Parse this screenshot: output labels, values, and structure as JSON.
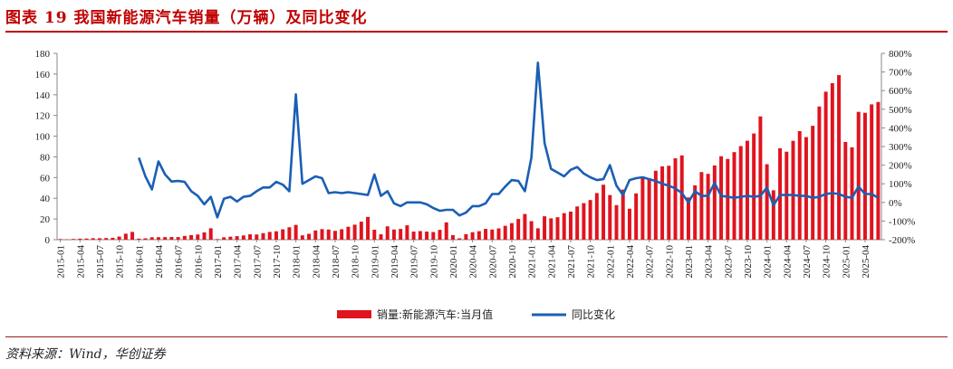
{
  "title": "图表 19   我国新能源汽车销量（万辆）及同比变化",
  "source": "资料来源：Wind，华创证券",
  "colors": {
    "bar": "#e0141e",
    "line": "#1a5fb4",
    "title": "#c00000",
    "axis": "#888888"
  },
  "chart_data": {
    "type": "bar+line",
    "left_axis": {
      "min": 0,
      "max": 180,
      "step": 20,
      "ticks": [
        "0",
        "20",
        "40",
        "60",
        "80",
        "100",
        "120",
        "140",
        "160",
        "180"
      ]
    },
    "right_axis": {
      "min": -200,
      "max": 800,
      "step": 100,
      "ticks": [
        "-200%",
        "-100%",
        "0%",
        "100%",
        "200%",
        "300%",
        "400%",
        "500%",
        "600%",
        "700%",
        "800%"
      ]
    },
    "x_tick_labels": [
      "2015-01",
      "2015-04",
      "2015-07",
      "2015-10",
      "2016-01",
      "2016-04",
      "2016-07",
      "2016-10",
      "2017-01",
      "2017-04",
      "2017-07",
      "2017-10",
      "2018-01",
      "2018-04",
      "2018-07",
      "2018-10",
      "2019-01",
      "2019-04",
      "2019-07",
      "2019-10",
      "2020-01",
      "2020-04",
      "2020-07",
      "2020-10",
      "2021-01",
      "2021-04",
      "2021-07",
      "2021-10",
      "2022-01",
      "2022-04",
      "2022-07",
      "2022-10",
      "2023-01",
      "2023-04",
      "2023-07",
      "2023-10",
      "2024-01",
      "2024-04",
      "2024-07",
      "2024-10",
      "2025-01",
      "2025-04"
    ],
    "legend": [
      "销量:新能源汽车:当月值",
      "同比变化"
    ],
    "legend_position": "bottom",
    "start_month": "2015-01",
    "series": [
      {
        "name": "销量:新能源汽车:当月值",
        "type": "bar",
        "axis": "left",
        "values": [
          0.6,
          0.3,
          0.7,
          1.0,
          1.1,
          1.4,
          1.4,
          1.6,
          1.8,
          3.0,
          5.8,
          7.5,
          1.0,
          1.3,
          2.3,
          2.4,
          2.5,
          2.6,
          2.5,
          3.6,
          4.4,
          5.0,
          7.0,
          11.0,
          0.6,
          2.3,
          2.9,
          3.4,
          4.1,
          5.2,
          5.0,
          6.3,
          7.5,
          8.1,
          10.0,
          12.0,
          14.3,
          4.2,
          5.7,
          8.9,
          10.2,
          9.8,
          8.5,
          10.1,
          12.5,
          14.5,
          17.4,
          22.0,
          9.6,
          5.2,
          12.9,
          9.8,
          10.4,
          13.9,
          7.8,
          8.3,
          7.8,
          7.4,
          9.5,
          16.7,
          4.4,
          1.3,
          5.3,
          7.2,
          8.2,
          10.4,
          9.8,
          10.9,
          13.4,
          16.0,
          20.0,
          24.8,
          17.9,
          11.0,
          22.6,
          20.6,
          21.7,
          25.6,
          27.1,
          32.1,
          35.3,
          38.3,
          45.0,
          53.1,
          43.1,
          33.4,
          48.4,
          29.9,
          44.7,
          59.6,
          59.3,
          66.6,
          70.8,
          71.4,
          78.6,
          81.4,
          40.8,
          52.5,
          65.3,
          63.6,
          71.7,
          80.6,
          78.0,
          84.6,
          90.4,
          95.6,
          102.6,
          119.1,
          72.9,
          47.7,
          88.3,
          85.0,
          95.5,
          104.9,
          99.1,
          110.0,
          128.7,
          143.0,
          151.2,
          159.0,
          94.4,
          89.2,
          123.5,
          122.6,
          130.7,
          133.0
        ]
      },
      {
        "name": "同比变化",
        "type": "line",
        "axis": "right",
        "unit": "%",
        "start_month": "2016-01",
        "values": [
          240,
          140,
          70,
          220,
          150,
          112,
          115,
          110,
          60,
          35,
          -10,
          30,
          -80,
          20,
          30,
          5,
          30,
          35,
          60,
          80,
          80,
          110,
          95,
          60,
          580,
          100,
          120,
          140,
          130,
          50,
          55,
          50,
          55,
          50,
          45,
          40,
          150,
          35,
          60,
          -5,
          -20,
          0,
          0,
          0,
          -10,
          -30,
          -45,
          -40,
          -40,
          -70,
          -55,
          -20,
          -20,
          -5,
          45,
          45,
          85,
          120,
          115,
          60,
          240,
          750,
          320,
          180,
          160,
          140,
          175,
          190,
          155,
          135,
          120,
          125,
          200,
          90,
          40,
          120,
          130,
          135,
          125,
          115,
          100,
          90,
          75,
          50,
          0,
          60,
          35,
          35,
          105,
          35,
          30,
          25,
          30,
          35,
          30,
          35,
          80,
          -15,
          40,
          40,
          40,
          35,
          35,
          25,
          30,
          45,
          50,
          45,
          30,
          25,
          85,
          45,
          45,
          25
        ]
      }
    ]
  }
}
